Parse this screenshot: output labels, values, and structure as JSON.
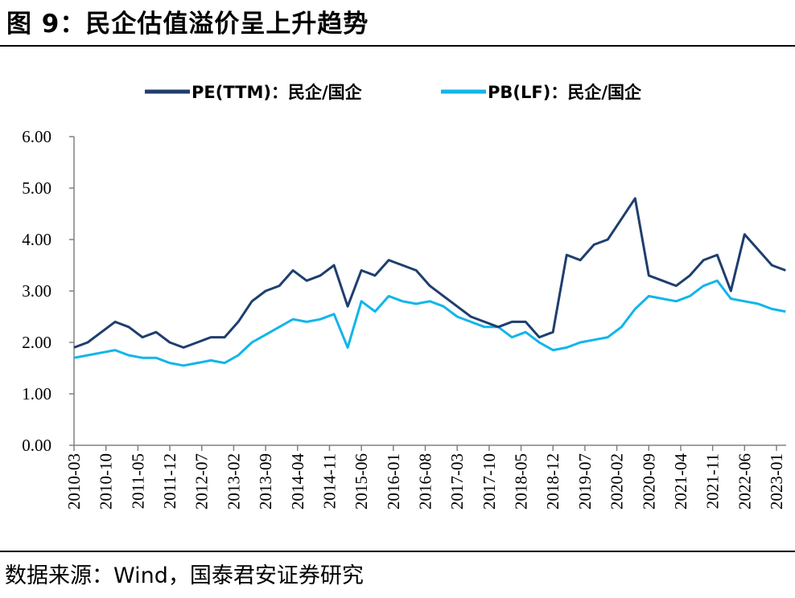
{
  "header": {
    "title": "图 9：民企估值溢价呈上升趋势"
  },
  "footer": {
    "source": "数据来源：Wind，国泰君安证券研究"
  },
  "chart_data": {
    "type": "line",
    "title": "图 9：民企估值溢价呈上升趋势",
    "xlabel": "",
    "ylabel": "",
    "ylim": [
      0,
      6
    ],
    "yticks": [
      "0.00",
      "1.00",
      "2.00",
      "3.00",
      "4.00",
      "5.00",
      "6.00"
    ],
    "xticks": [
      "2010-03",
      "2010-10",
      "2011-05",
      "2011-12",
      "2012-07",
      "2013-02",
      "2013-09",
      "2014-04",
      "2014-11",
      "2015-06",
      "2016-01",
      "2016-08",
      "2017-03",
      "2017-10",
      "2018-05",
      "2018-12",
      "2019-07",
      "2020-02",
      "2020-09",
      "2021-04",
      "2021-11",
      "2022-06",
      "2023-01"
    ],
    "legend_position": "top-center",
    "grid": false,
    "colors": {
      "pe": "#1f3e6e",
      "pb": "#12b5ea",
      "axis": "#808080"
    },
    "x": [
      "2010-03",
      "2010-06",
      "2010-09",
      "2010-12",
      "2011-03",
      "2011-06",
      "2011-09",
      "2011-12",
      "2012-03",
      "2012-06",
      "2012-09",
      "2012-12",
      "2013-03",
      "2013-06",
      "2013-09",
      "2013-12",
      "2014-03",
      "2014-06",
      "2014-09",
      "2014-12",
      "2015-03",
      "2015-06",
      "2015-09",
      "2015-12",
      "2016-03",
      "2016-06",
      "2016-09",
      "2016-12",
      "2017-03",
      "2017-06",
      "2017-09",
      "2017-12",
      "2018-03",
      "2018-06",
      "2018-09",
      "2018-12",
      "2019-03",
      "2019-06",
      "2019-09",
      "2019-12",
      "2020-03",
      "2020-06",
      "2020-09",
      "2020-12",
      "2021-03",
      "2021-06",
      "2021-09",
      "2021-12",
      "2022-03",
      "2022-06",
      "2022-09",
      "2022-12",
      "2023-03"
    ],
    "series": [
      {
        "name": "PE(TTM)：民企/国企",
        "values": [
          1.9,
          2.0,
          2.2,
          2.4,
          2.3,
          2.1,
          2.2,
          2.0,
          1.9,
          2.0,
          2.1,
          2.1,
          2.4,
          2.8,
          3.0,
          3.1,
          3.4,
          3.2,
          3.3,
          3.5,
          2.7,
          3.4,
          3.3,
          3.6,
          3.5,
          3.4,
          3.1,
          2.9,
          2.7,
          2.5,
          2.4,
          2.3,
          2.4,
          2.4,
          2.1,
          2.2,
          3.7,
          3.6,
          3.9,
          4.0,
          4.4,
          4.8,
          3.3,
          3.2,
          3.1,
          3.3,
          3.6,
          3.7,
          3.0,
          4.1,
          3.8,
          3.5,
          3.4
        ]
      },
      {
        "name": "PB(LF)：民企/国企",
        "values": [
          1.7,
          1.75,
          1.8,
          1.85,
          1.75,
          1.7,
          1.7,
          1.6,
          1.55,
          1.6,
          1.65,
          1.6,
          1.75,
          2.0,
          2.15,
          2.3,
          2.45,
          2.4,
          2.45,
          2.55,
          1.9,
          2.8,
          2.6,
          2.9,
          2.8,
          2.75,
          2.8,
          2.7,
          2.5,
          2.4,
          2.3,
          2.3,
          2.1,
          2.2,
          2.0,
          1.85,
          1.9,
          2.0,
          2.05,
          2.1,
          2.3,
          2.65,
          2.9,
          2.85,
          2.8,
          2.9,
          3.1,
          3.2,
          2.85,
          2.8,
          2.75,
          2.65,
          2.6
        ]
      }
    ]
  }
}
